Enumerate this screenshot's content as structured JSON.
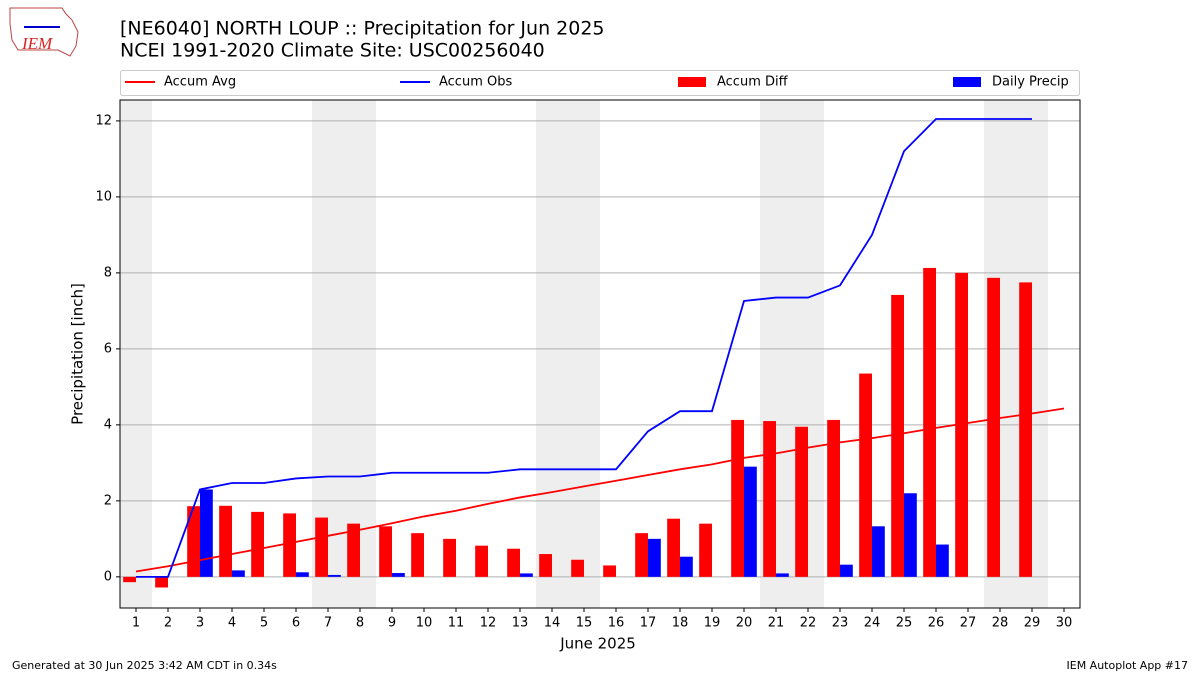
{
  "logo_text": "IEM",
  "footer_left": "Generated at 30 Jun 2025 3:42 AM CDT in 0.34s",
  "footer_right": "IEM Autoplot App #17",
  "chart_data": {
    "type": "combo",
    "title": "[NE6040] NORTH LOUP :: Precipitation for Jun 2025",
    "subtitle": "NCEI 1991-2020 Climate Site: USC00256040",
    "x_label": "June 2025",
    "y_label": "Precipitation [inch]",
    "x": [
      1,
      2,
      3,
      4,
      5,
      6,
      7,
      8,
      9,
      10,
      11,
      12,
      13,
      14,
      15,
      16,
      17,
      18,
      19,
      20,
      21,
      22,
      23,
      24,
      25,
      26,
      27,
      28,
      29,
      30
    ],
    "xlim": [
      0.5,
      30.5
    ],
    "xticks": [
      1,
      2,
      3,
      4,
      5,
      6,
      7,
      8,
      9,
      10,
      11,
      12,
      13,
      14,
      15,
      16,
      17,
      18,
      19,
      20,
      21,
      22,
      23,
      24,
      25,
      26,
      27,
      28,
      29,
      30
    ],
    "ylim": [
      -0.82,
      12.55
    ],
    "yticks": [
      0,
      2,
      4,
      6,
      8,
      10,
      12
    ],
    "grid": true,
    "shaded_spans": [
      [
        0.5,
        1.5
      ],
      [
        6.5,
        8.5
      ],
      [
        13.5,
        15.5
      ],
      [
        20.5,
        22.5
      ],
      [
        27.5,
        29.5
      ]
    ],
    "shade_color": "#eeeeee",
    "series": [
      {
        "name": "Accum Avg",
        "kind": "line",
        "color": "#ff0000",
        "values": [
          0.14,
          0.28,
          0.44,
          0.6,
          0.76,
          0.92,
          1.08,
          1.24,
          1.41,
          1.59,
          1.74,
          1.92,
          2.09,
          2.23,
          2.38,
          2.53,
          2.68,
          2.83,
          2.96,
          3.13,
          3.25,
          3.4,
          3.54,
          3.65,
          3.78,
          3.92,
          4.05,
          4.18,
          4.3,
          4.43
        ]
      },
      {
        "name": "Accum Obs",
        "kind": "line",
        "color": "#0000ff",
        "values": [
          0,
          0,
          2.3,
          2.47,
          2.47,
          2.59,
          2.64,
          2.64,
          2.74,
          2.74,
          2.74,
          2.74,
          2.83,
          2.83,
          2.83,
          2.83,
          3.83,
          4.36,
          4.36,
          7.26,
          7.35,
          7.35,
          7.67,
          9.0,
          11.2,
          12.05,
          12.05,
          12.05,
          12.05,
          null
        ]
      },
      {
        "name": "Accum Diff",
        "kind": "bar",
        "color": "#ff0000",
        "values": [
          -0.14,
          -0.28,
          1.86,
          1.87,
          1.71,
          1.67,
          1.56,
          1.4,
          1.33,
          1.15,
          1.0,
          0.82,
          0.74,
          0.6,
          0.45,
          0.3,
          1.15,
          1.53,
          1.4,
          4.13,
          4.1,
          3.95,
          4.13,
          5.35,
          7.42,
          8.13,
          8.0,
          7.87,
          7.75,
          null
        ]
      },
      {
        "name": "Daily Precip",
        "kind": "bar",
        "color": "#0000ff",
        "values": [
          0,
          0,
          2.3,
          0.17,
          0,
          0.12,
          0.05,
          0,
          0.1,
          0,
          0,
          0,
          0.09,
          0,
          0,
          0,
          1.0,
          0.53,
          0,
          2.9,
          0.09,
          0,
          0.32,
          1.33,
          2.2,
          0.85,
          0,
          0,
          0,
          null
        ]
      }
    ]
  }
}
